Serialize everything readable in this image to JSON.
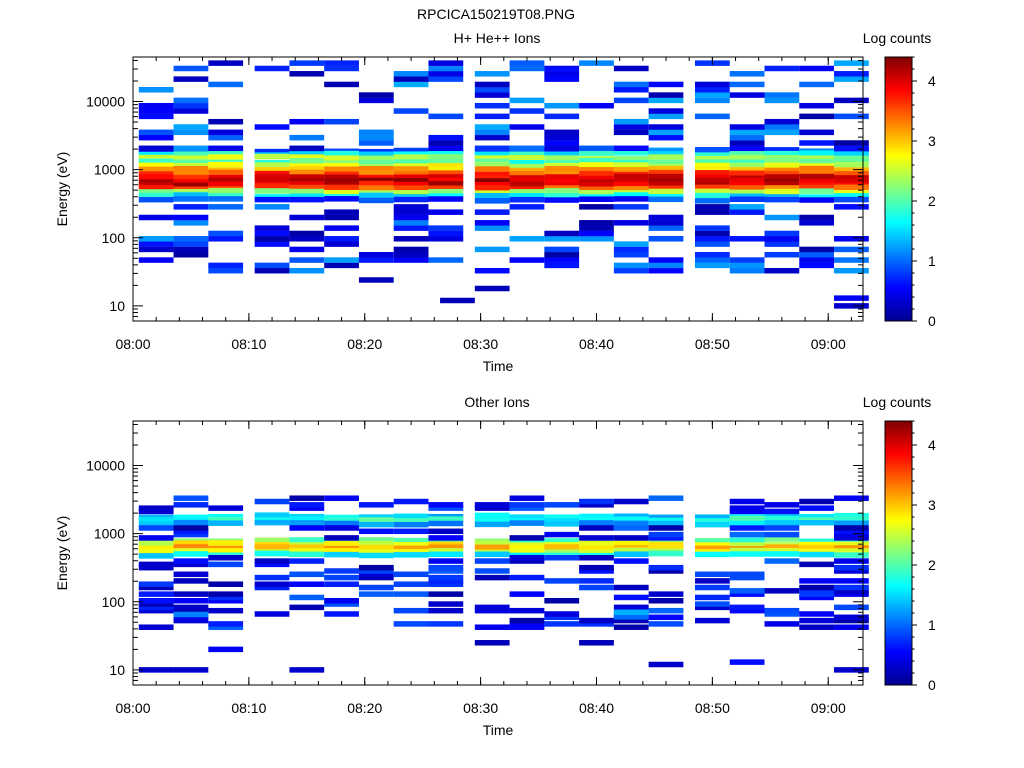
{
  "figure_title": "RPCICA150219T08.PNG",
  "colors": {
    "colormap": [
      "#00008f",
      "#0000ff",
      "#0080ff",
      "#00ffff",
      "#80ff80",
      "#ffff00",
      "#ff8000",
      "#ff0000",
      "#800000"
    ]
  },
  "chart_data": [
    {
      "type": "heatmap",
      "title": "H+ He++ Ions",
      "xlabel": "Time",
      "ylabel": "Energy (eV)",
      "x_ticks": [
        "08:00",
        "08:10",
        "08:20",
        "08:30",
        "08:40",
        "08:50",
        "09:00"
      ],
      "x_range": [
        "08:00",
        "09:03"
      ],
      "y_scale": "log",
      "y_ticks": [
        10,
        100,
        1000,
        10000
      ],
      "y_tick_labels": [
        "10",
        "100",
        "1000",
        "10000"
      ],
      "y_range": [
        6,
        45000
      ],
      "colorbar": {
        "label": "Log counts",
        "range": [
          0,
          4.4
        ],
        "ticks": [
          0,
          1,
          2,
          3,
          4
        ],
        "tick_labels": [
          "0",
          "1",
          "2",
          "3",
          "4"
        ]
      },
      "time_columns": [
        "08:02",
        "08:05",
        "08:08",
        "08:12",
        "08:15",
        "08:18",
        "08:21",
        "08:24",
        "08:27",
        "08:31",
        "08:34",
        "08:37",
        "08:40",
        "08:43",
        "08:46",
        "08:50",
        "08:53",
        "08:56",
        "08:59",
        "09:02"
      ],
      "profile": [
        {
          "energy": 1900,
          "value": 1.0
        },
        {
          "energy": 1700,
          "value": 1.7
        },
        {
          "energy": 1500,
          "value": 2.4
        },
        {
          "energy": 1300,
          "value": 2.0
        },
        {
          "energy": 1150,
          "value": 2.6
        },
        {
          "energy": 1000,
          "value": 3.1
        },
        {
          "energy": 880,
          "value": 3.5
        },
        {
          "energy": 770,
          "value": 3.9
        },
        {
          "energy": 680,
          "value": 4.1
        },
        {
          "energy": 600,
          "value": 4.0
        },
        {
          "energy": 530,
          "value": 3.5
        },
        {
          "energy": 470,
          "value": 2.4
        },
        {
          "energy": 410,
          "value": 1.6
        },
        {
          "energy": 360,
          "value": 0.8
        }
      ],
      "sparse": {
        "energy_range": [
          30,
          40000
        ],
        "value_range": [
          0.1,
          1.3
        ],
        "density": 0.45
      },
      "isolated": [
        {
          "time": "08:28",
          "energy": 12,
          "value": 0.2
        },
        {
          "time": "08:31",
          "energy": 18,
          "value": 0.2
        },
        {
          "time": "08:21",
          "energy": 24,
          "value": 0.2
        },
        {
          "time": "09:02",
          "energy": 10,
          "value": 0.3
        },
        {
          "time": "09:02",
          "energy": 13,
          "value": 0.5
        }
      ]
    },
    {
      "type": "heatmap",
      "title": "Other Ions",
      "xlabel": "Time",
      "ylabel": "Energy (eV)",
      "x_ticks": [
        "08:00",
        "08:10",
        "08:20",
        "08:30",
        "08:40",
        "08:50",
        "09:00"
      ],
      "x_range": [
        "08:00",
        "09:03"
      ],
      "y_scale": "log",
      "y_ticks": [
        10,
        100,
        1000,
        10000
      ],
      "y_tick_labels": [
        "10",
        "100",
        "1000",
        "10000"
      ],
      "y_range": [
        6,
        45000
      ],
      "colorbar": {
        "label": "Log counts",
        "range": [
          0,
          4.4
        ],
        "ticks": [
          0,
          1,
          2,
          3,
          4
        ],
        "tick_labels": [
          "0",
          "1",
          "2",
          "3",
          "4"
        ]
      },
      "time_columns": [
        "08:02",
        "08:05",
        "08:08",
        "08:12",
        "08:15",
        "08:18",
        "08:21",
        "08:24",
        "08:27",
        "08:31",
        "08:34",
        "08:37",
        "08:40",
        "08:43",
        "08:46",
        "08:50",
        "08:53",
        "08:56",
        "08:59",
        "09:02"
      ],
      "profile": [
        {
          "energy": 1800,
          "value": 1.5
        },
        {
          "energy": 1600,
          "value": 1.8
        },
        {
          "energy": 1400,
          "value": 1.3
        },
        {
          "energy": 800,
          "value": 2.1
        },
        {
          "energy": 700,
          "value": 2.7
        },
        {
          "energy": 620,
          "value": 3.0
        },
        {
          "energy": 550,
          "value": 2.5
        },
        {
          "energy": 490,
          "value": 1.6
        }
      ],
      "sparse": {
        "energy_range": [
          40,
          3500
        ],
        "value_range": [
          0.1,
          1.0
        ],
        "density": 0.35
      },
      "isolated": [
        {
          "time": "08:40",
          "energy": 25,
          "value": 0.2
        },
        {
          "time": "08:31",
          "energy": 25,
          "value": 0.2
        },
        {
          "time": "08:02",
          "energy": 10,
          "value": 0.3
        },
        {
          "time": "08:05",
          "energy": 10,
          "value": 0.3
        },
        {
          "time": "08:15",
          "energy": 10,
          "value": 0.3
        },
        {
          "time": "08:46",
          "energy": 12,
          "value": 0.3
        },
        {
          "time": "08:53",
          "energy": 13,
          "value": 0.6
        },
        {
          "time": "09:02",
          "energy": 10,
          "value": 0.3
        },
        {
          "time": "08:43",
          "energy": 60,
          "value": 1.0
        },
        {
          "time": "08:43",
          "energy": 70,
          "value": 1.3
        },
        {
          "time": "08:05",
          "energy": 65,
          "value": 1.1
        },
        {
          "time": "08:08",
          "energy": 20,
          "value": 0.5
        }
      ]
    }
  ]
}
